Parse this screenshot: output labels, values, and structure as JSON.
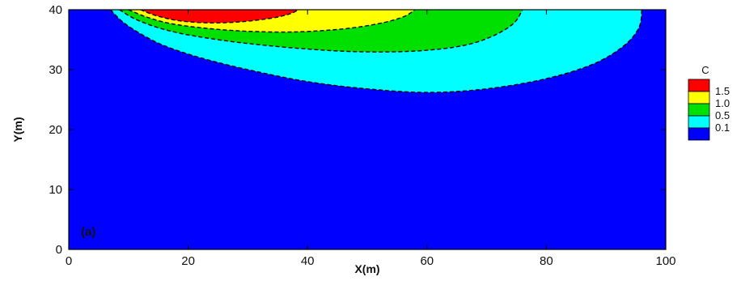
{
  "chart_data": {
    "type": "contour",
    "xlabel": "X(m)",
    "ylabel": "Y(m)",
    "xlim": [
      0,
      100
    ],
    "ylim": [
      0,
      40
    ],
    "xticks": [
      0,
      20,
      40,
      60,
      80,
      100
    ],
    "yticks": [
      0,
      10,
      20,
      30,
      40
    ],
    "xtick_labels": [
      "0",
      "20",
      "40",
      "60",
      "80",
      "100"
    ],
    "ytick_labels": [
      "0",
      "10",
      "20",
      "30",
      "40"
    ],
    "panel_label": "(a)",
    "legend": {
      "title": "C",
      "placement": "right",
      "levels": [
        {
          "label": "1.5",
          "value": 1.5,
          "color": "#ff0000"
        },
        {
          "label": "1.0",
          "value": 1.0,
          "color": "#ffff00"
        },
        {
          "label": "0.5",
          "value": 0.5,
          "color": "#00e000"
        },
        {
          "label": "0.1",
          "value": 0.1,
          "color": "#00ffff"
        }
      ],
      "background_color": "#0000ff"
    },
    "background_color": "#0000ff",
    "contours": [
      {
        "level": 0.1,
        "color": "#00ffff",
        "x": [
          7,
          9,
          12,
          16,
          22,
          30,
          40,
          50,
          60,
          70,
          80,
          88,
          93,
          95.5,
          96
        ],
        "y": [
          40,
          38,
          36,
          34,
          32,
          30,
          28,
          26.8,
          26.2,
          26.8,
          28.5,
          31,
          34,
          37,
          40
        ]
      },
      {
        "level": 0.5,
        "color": "#00e000",
        "x": [
          8.5,
          11,
          15,
          20,
          28,
          38,
          48,
          58,
          66,
          71,
          74.5,
          76
        ],
        "y": [
          40,
          38.5,
          37,
          35.8,
          34.6,
          33.6,
          33,
          33.1,
          34,
          35.6,
          37.7,
          40
        ]
      },
      {
        "level": 1.0,
        "color": "#ffff00",
        "x": [
          10,
          13,
          17,
          23,
          30,
          38,
          46,
          52,
          56,
          58
        ],
        "y": [
          40,
          38.8,
          37.7,
          36.9,
          36.4,
          36.3,
          36.8,
          37.7,
          38.8,
          40
        ]
      },
      {
        "level": 1.5,
        "color": "#ff0000",
        "x": [
          12,
          15,
          19,
          24,
          29,
          34,
          37,
          38.5
        ],
        "y": [
          40,
          38.9,
          38.1,
          37.8,
          38,
          38.6,
          39.3,
          40
        ]
      }
    ]
  }
}
